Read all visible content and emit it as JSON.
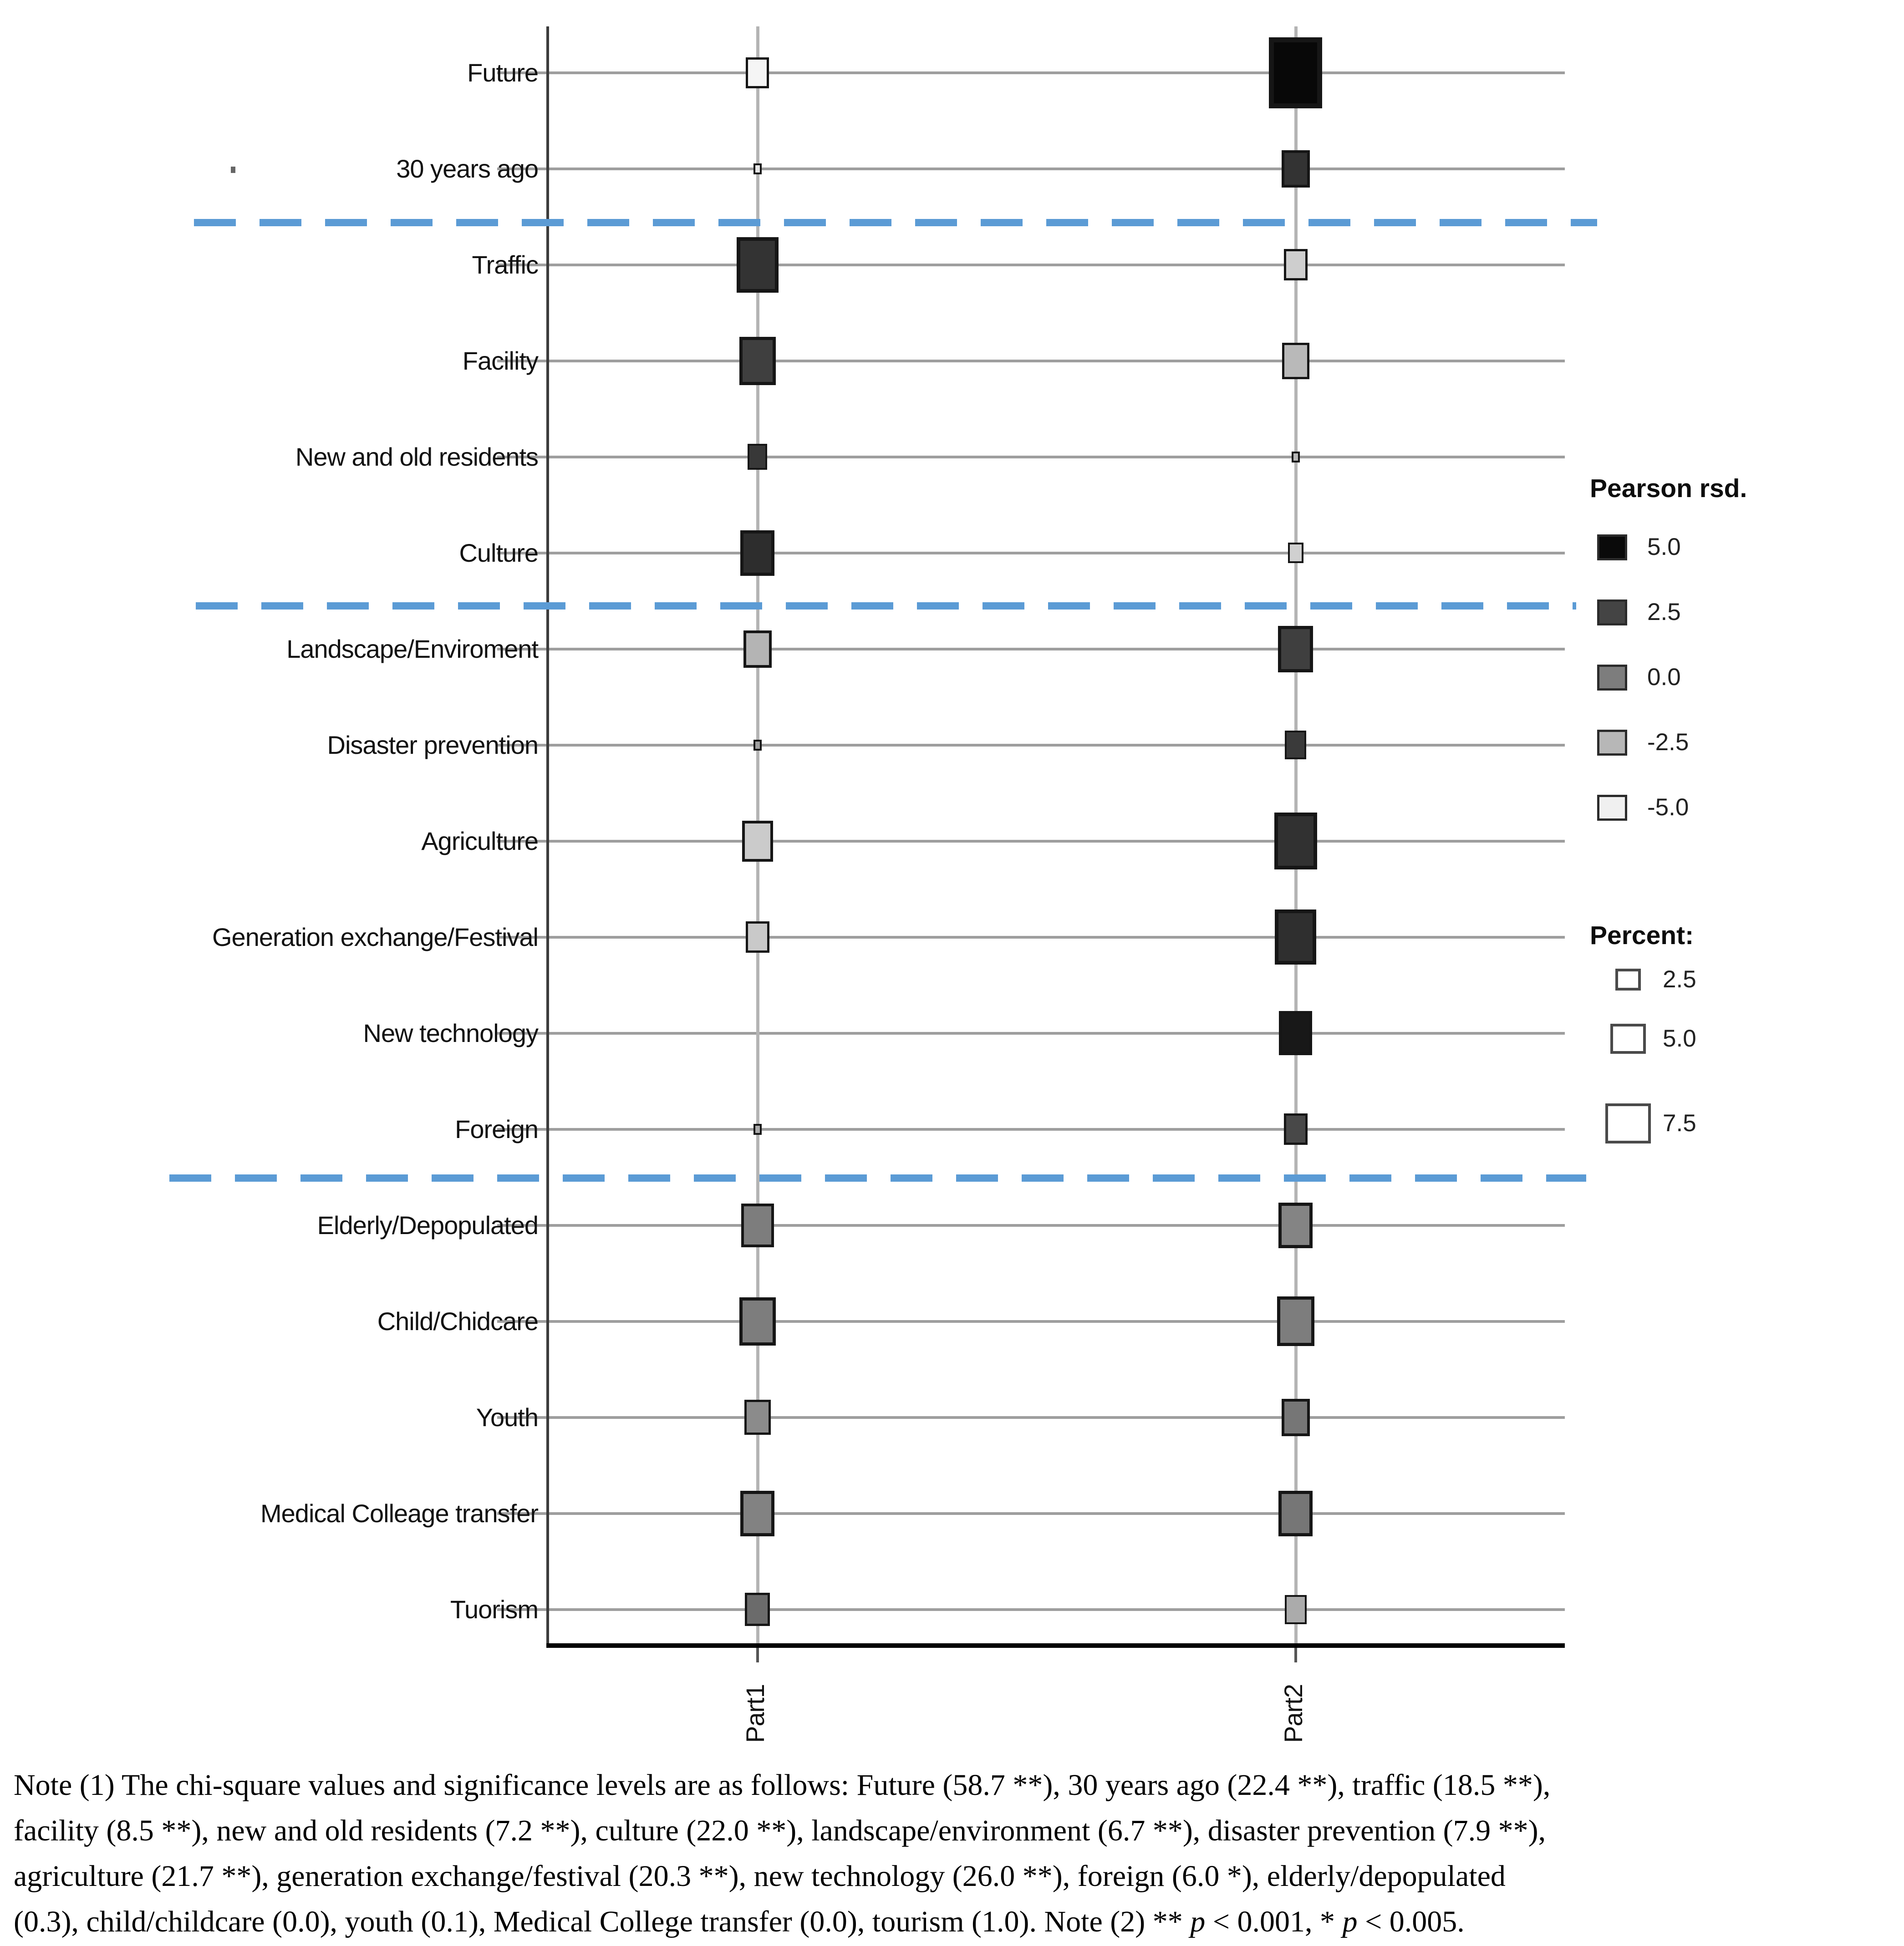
{
  "figure": {
    "note_lines": [
      "Note (1) The chi-square values and significance levels are as follows: Future (58.7 **), 30 years ago (22.4 **), traffic (18.5 **),",
      "facility (8.5 **), new and old residents (7.2 **), culture (22.0 **), landscape/environment (6.7 **), disaster prevention (7.9 **),",
      "agriculture (21.7 **), generation exchange/festival (20.3 **), new technology (26.0 **), foreign (6.0 *), elderly/depopulated",
      "(0.3), child/childcare (0.0), youth (0.1), Medical College transfer (0.0), tourism (1.0). Note (2) ** p < 0.001, * p < 0.005."
    ],
    "chi_square_note_values": {
      "Future": "58.7 **",
      "30 years ago": "22.4 **",
      "traffic": "18.5 **",
      "facility": "8.5 **",
      "new and old residents": "7.2 **",
      "culture": "22.0 **",
      "landscape/environment": "6.7 **",
      "disaster prevention": "7.9 **",
      "agriculture": "21.7 **",
      "generation exchange/festival": "20.3 **",
      "new technology": "26.0 **",
      "foreign": "6.0 *",
      "elderly/depopulated": "0.3",
      "child/childcare": "0.0",
      "youth": "0.1",
      "Medical College transfer": "0.0",
      "tourism": "1.0"
    },
    "significance_note": "** p < 0.001, * p < 0.005."
  },
  "chart_data": {
    "type": "scatter",
    "subtype": "balloon-matrix (square markers; size = Percent, shade = Pearson residual)",
    "title": "",
    "xlabel": "",
    "ylabel": "",
    "grid": true,
    "x_categories": [
      "Part1",
      "Part2"
    ],
    "y_categories": [
      "Future",
      "30 years ago",
      "Traffic",
      "Facility",
      "New and old residents",
      "Culture",
      "Landscape/Enviroment",
      "Disaster prevention",
      "Agriculture",
      "Generation exchange/Festival",
      "New technology",
      "Foreign",
      "Elderly/Depopulated",
      "Child/Chidcare",
      "Youth",
      "Medical Colleage transfer",
      "Tuorism"
    ],
    "group_separators_after_row": [
      1,
      5,
      11
    ],
    "encoding": {
      "size": "Percent",
      "color": "Pearson rsd."
    },
    "color_legend": {
      "title": "Pearson rsd.",
      "ticks": [
        5.0,
        2.5,
        0.0,
        -2.5,
        -5.0
      ]
    },
    "size_legend": {
      "title": "Percent:",
      "ticks": [
        2.5,
        5.0,
        7.5
      ]
    },
    "series": [
      {
        "name": "Part1",
        "percent": [
          2.0,
          0.25,
          6.5,
          4.9,
          1.4,
          4.3,
          3.0,
          0.25,
          3.6,
          2.1,
          0.0,
          0.25,
          4.0,
          4.9,
          2.6,
          4.3,
          2.3
        ],
        "pearson_rsd": [
          -5.2,
          -4.5,
          3.2,
          2.7,
          3.0,
          3.5,
          -2.4,
          -1.5,
          -3.4,
          -3.3,
          null,
          -2.0,
          0.0,
          0.0,
          -0.6,
          -0.2,
          0.8
        ]
      },
      {
        "name": "Part2",
        "percent": [
          10.6,
          3.0,
          2.1,
          2.8,
          0.25,
          0.9,
          4.6,
          1.7,
          6.8,
          6.4,
          4.1,
          2.1,
          4.3,
          5.2,
          3.0,
          4.3,
          1.8
        ],
        "pearson_rsd": [
          5.2,
          3.2,
          -3.5,
          -2.6,
          -2.5,
          -3.6,
          2.7,
          2.9,
          3.3,
          3.4,
          4.4,
          2.3,
          -0.3,
          0.0,
          0.3,
          0.3,
          -2.0
        ]
      }
    ]
  },
  "style": {
    "separator_blue": "#5b9bd5",
    "marker_border": "#161616",
    "gridline_gray": "#9e9e9e",
    "stem_gray": "#b4b4b4",
    "axis_gray": "#3c3c3c",
    "background": "#ffffff"
  }
}
